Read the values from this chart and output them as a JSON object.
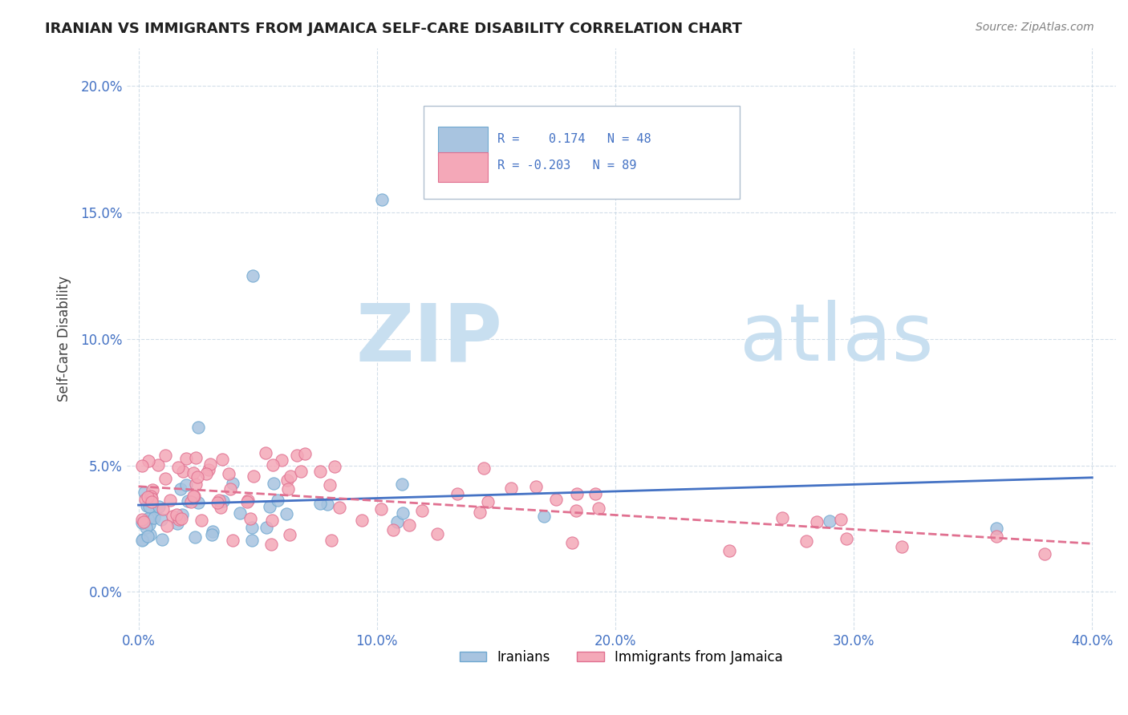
{
  "title": "IRANIAN VS IMMIGRANTS FROM JAMAICA SELF-CARE DISABILITY CORRELATION CHART",
  "source": "Source: ZipAtlas.com",
  "ylabel": "Self-Care Disability",
  "xlim": [
    -0.005,
    0.41
  ],
  "ylim": [
    -0.015,
    0.215
  ],
  "iranian_R": 0.174,
  "iranian_N": 48,
  "jamaica_R": -0.203,
  "jamaica_N": 89,
  "iranian_color": "#a8c4e0",
  "iranian_edge": "#6fa8d0",
  "jamaica_color": "#f4a8b8",
  "jamaica_edge": "#e07090",
  "line_iranian_color": "#4472c4",
  "line_jamaica_color": "#e07090",
  "watermark_zip": "ZIP",
  "watermark_atlas": "atlas",
  "watermark_color_zip": "#c8dff0",
  "watermark_color_atlas": "#c8dff0",
  "legend_color": "#4472c4",
  "label_iranian": "Iranians",
  "label_jamaica": "Immigrants from Jamaica"
}
